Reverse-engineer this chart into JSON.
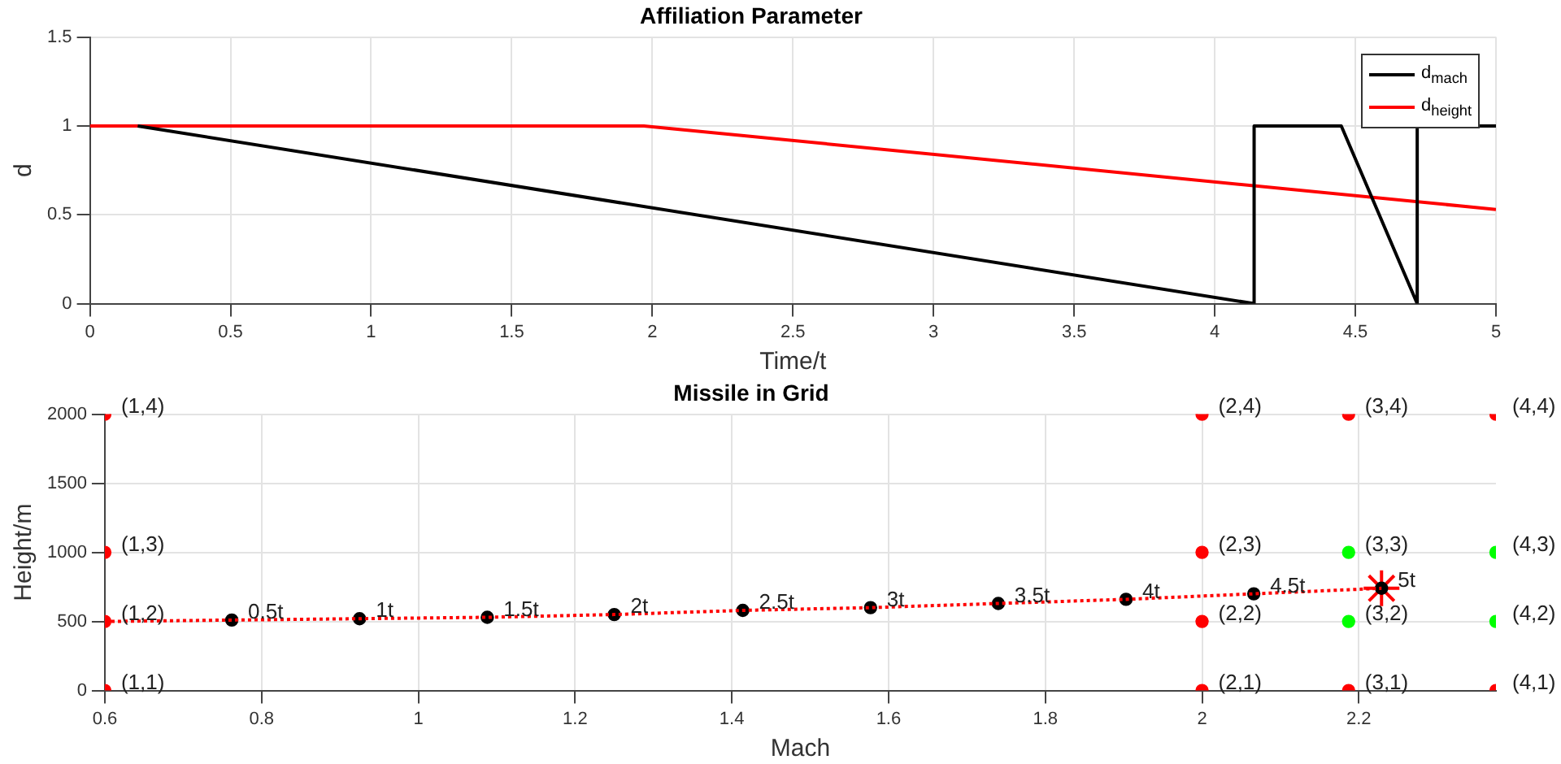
{
  "chart_data": [
    {
      "type": "line",
      "title": "Affiliation Parameter",
      "xlabel": "Time/t",
      "ylabel": "d",
      "xlim": [
        0,
        5
      ],
      "xticks": [
        0,
        0.5,
        1,
        1.5,
        2,
        2.5,
        3,
        3.5,
        4,
        4.5,
        5
      ],
      "ylim": [
        0,
        1.5
      ],
      "yticks": [
        0,
        0.5,
        1,
        1.5
      ],
      "grid": true,
      "legend": "top right",
      "marker": "none",
      "series": [
        {
          "name": "d$_{mach}$",
          "color": "#000000",
          "x": [
            0.17,
            4.14,
            4.14,
            4.45,
            4.72,
            4.72,
            5
          ],
          "values": [
            1,
            0,
            1,
            1,
            0,
            1,
            1
          ]
        },
        {
          "name": "d$_{height}$",
          "color": "#ff0000",
          "x": [
            0,
            1.97,
            5
          ],
          "values": [
            1,
            1,
            0.53
          ]
        }
      ]
    },
    {
      "type": "scatter",
      "title": "Missile in Grid",
      "xlabel": "Mach",
      "ylabel": "Height/m",
      "xlim": [
        0.6,
        2.375
      ],
      "xticks": [
        0.6,
        0.8,
        1,
        1.2,
        1.4,
        1.6,
        1.8,
        2,
        2.2
      ],
      "ylim": [
        0,
        2000
      ],
      "yticks": [
        0,
        500,
        1000,
        1500,
        2000
      ],
      "grid": true,
      "series": [
        {
          "type": "line",
          "color": "#ff0000",
          "line_style": "dotted",
          "marker": "none",
          "x": [
            0.6,
            0.762,
            0.925,
            1.088,
            1.25,
            1.414,
            1.577,
            1.74,
            1.903,
            2.066,
            2.229
          ],
          "values": [
            500,
            510,
            520,
            530,
            550,
            580,
            600,
            630,
            660,
            700,
            740
          ]
        },
        {
          "color": "#000000",
          "marker": "circle",
          "x": [
            0.762,
            0.925,
            1.088,
            1.25,
            1.414,
            1.577,
            1.74,
            1.903,
            2.066,
            2.229
          ],
          "values": [
            510,
            520,
            530,
            550,
            580,
            600,
            630,
            660,
            700,
            740
          ]
        },
        {
          "color": "#ff0000",
          "marker": "cross",
          "x": [
            2.229
          ],
          "values": [
            740
          ]
        },
        {
          "marker": "circle",
          "x": [
            0.6,
            0.6,
            0.6,
            0.6,
            2,
            2,
            2,
            2,
            2.187,
            2.187,
            2.187,
            2.187,
            2.375,
            2.375,
            2.375,
            2.375
          ],
          "values": [
            0,
            500,
            1000,
            2000,
            0,
            500,
            1000,
            2000,
            0,
            500,
            1000,
            2000,
            0,
            500,
            1000,
            2000
          ],
          "colors": [
            "#ff0000",
            "#ff0000",
            "#ff0000",
            "#ff0000",
            "#ff0000",
            "#ff0000",
            "#ff0000",
            "#ff0000",
            "#ff0000",
            "#00ff00",
            "#00ff00",
            "#ff0000",
            "#ff0000",
            "#00ff00",
            "#00ff00",
            "#ff0000"
          ]
        }
      ],
      "annotations": [
        {
          "text": "0.5t",
          "x": 0.762,
          "y": 510
        },
        {
          "text": "1t",
          "x": 0.925,
          "y": 520
        },
        {
          "text": "1.5t",
          "x": 1.088,
          "y": 530
        },
        {
          "text": "2t",
          "x": 1.25,
          "y": 550
        },
        {
          "text": "2.5t",
          "x": 1.414,
          "y": 580
        },
        {
          "text": "3t",
          "x": 1.577,
          "y": 600
        },
        {
          "text": "3.5t",
          "x": 1.74,
          "y": 630
        },
        {
          "text": "4t",
          "x": 1.903,
          "y": 660
        },
        {
          "text": "4.5t",
          "x": 2.066,
          "y": 700
        },
        {
          "text": "5t",
          "x": 2.229,
          "y": 740
        },
        {
          "text": "(1,1)",
          "x": 0.6,
          "y": 0
        },
        {
          "text": "(1,2)",
          "x": 0.6,
          "y": 500
        },
        {
          "text": "(1,3)",
          "x": 0.6,
          "y": 1000
        },
        {
          "text": "(1,4)",
          "x": 0.6,
          "y": 2000
        },
        {
          "text": "(2,1)",
          "x": 2,
          "y": 0
        },
        {
          "text": "(2,2)",
          "x": 2,
          "y": 500
        },
        {
          "text": "(2,3)",
          "x": 2,
          "y": 1000
        },
        {
          "text": "(2,4)",
          "x": 2,
          "y": 2000
        },
        {
          "text": "(3,1)",
          "x": 2.187,
          "y": 0
        },
        {
          "text": "(3,2)",
          "x": 2.187,
          "y": 500
        },
        {
          "text": "(3,3)",
          "x": 2.187,
          "y": 1000
        },
        {
          "text": "(3,4)",
          "x": 2.187,
          "y": 2000
        },
        {
          "text": "(4,1)",
          "x": 2.375,
          "y": 0
        },
        {
          "text": "(4,2)",
          "x": 2.375,
          "y": 500
        },
        {
          "text": "(4,3)",
          "x": 2.375,
          "y": 1000
        },
        {
          "text": "(4,4)",
          "x": 2.375,
          "y": 2000
        }
      ]
    }
  ]
}
